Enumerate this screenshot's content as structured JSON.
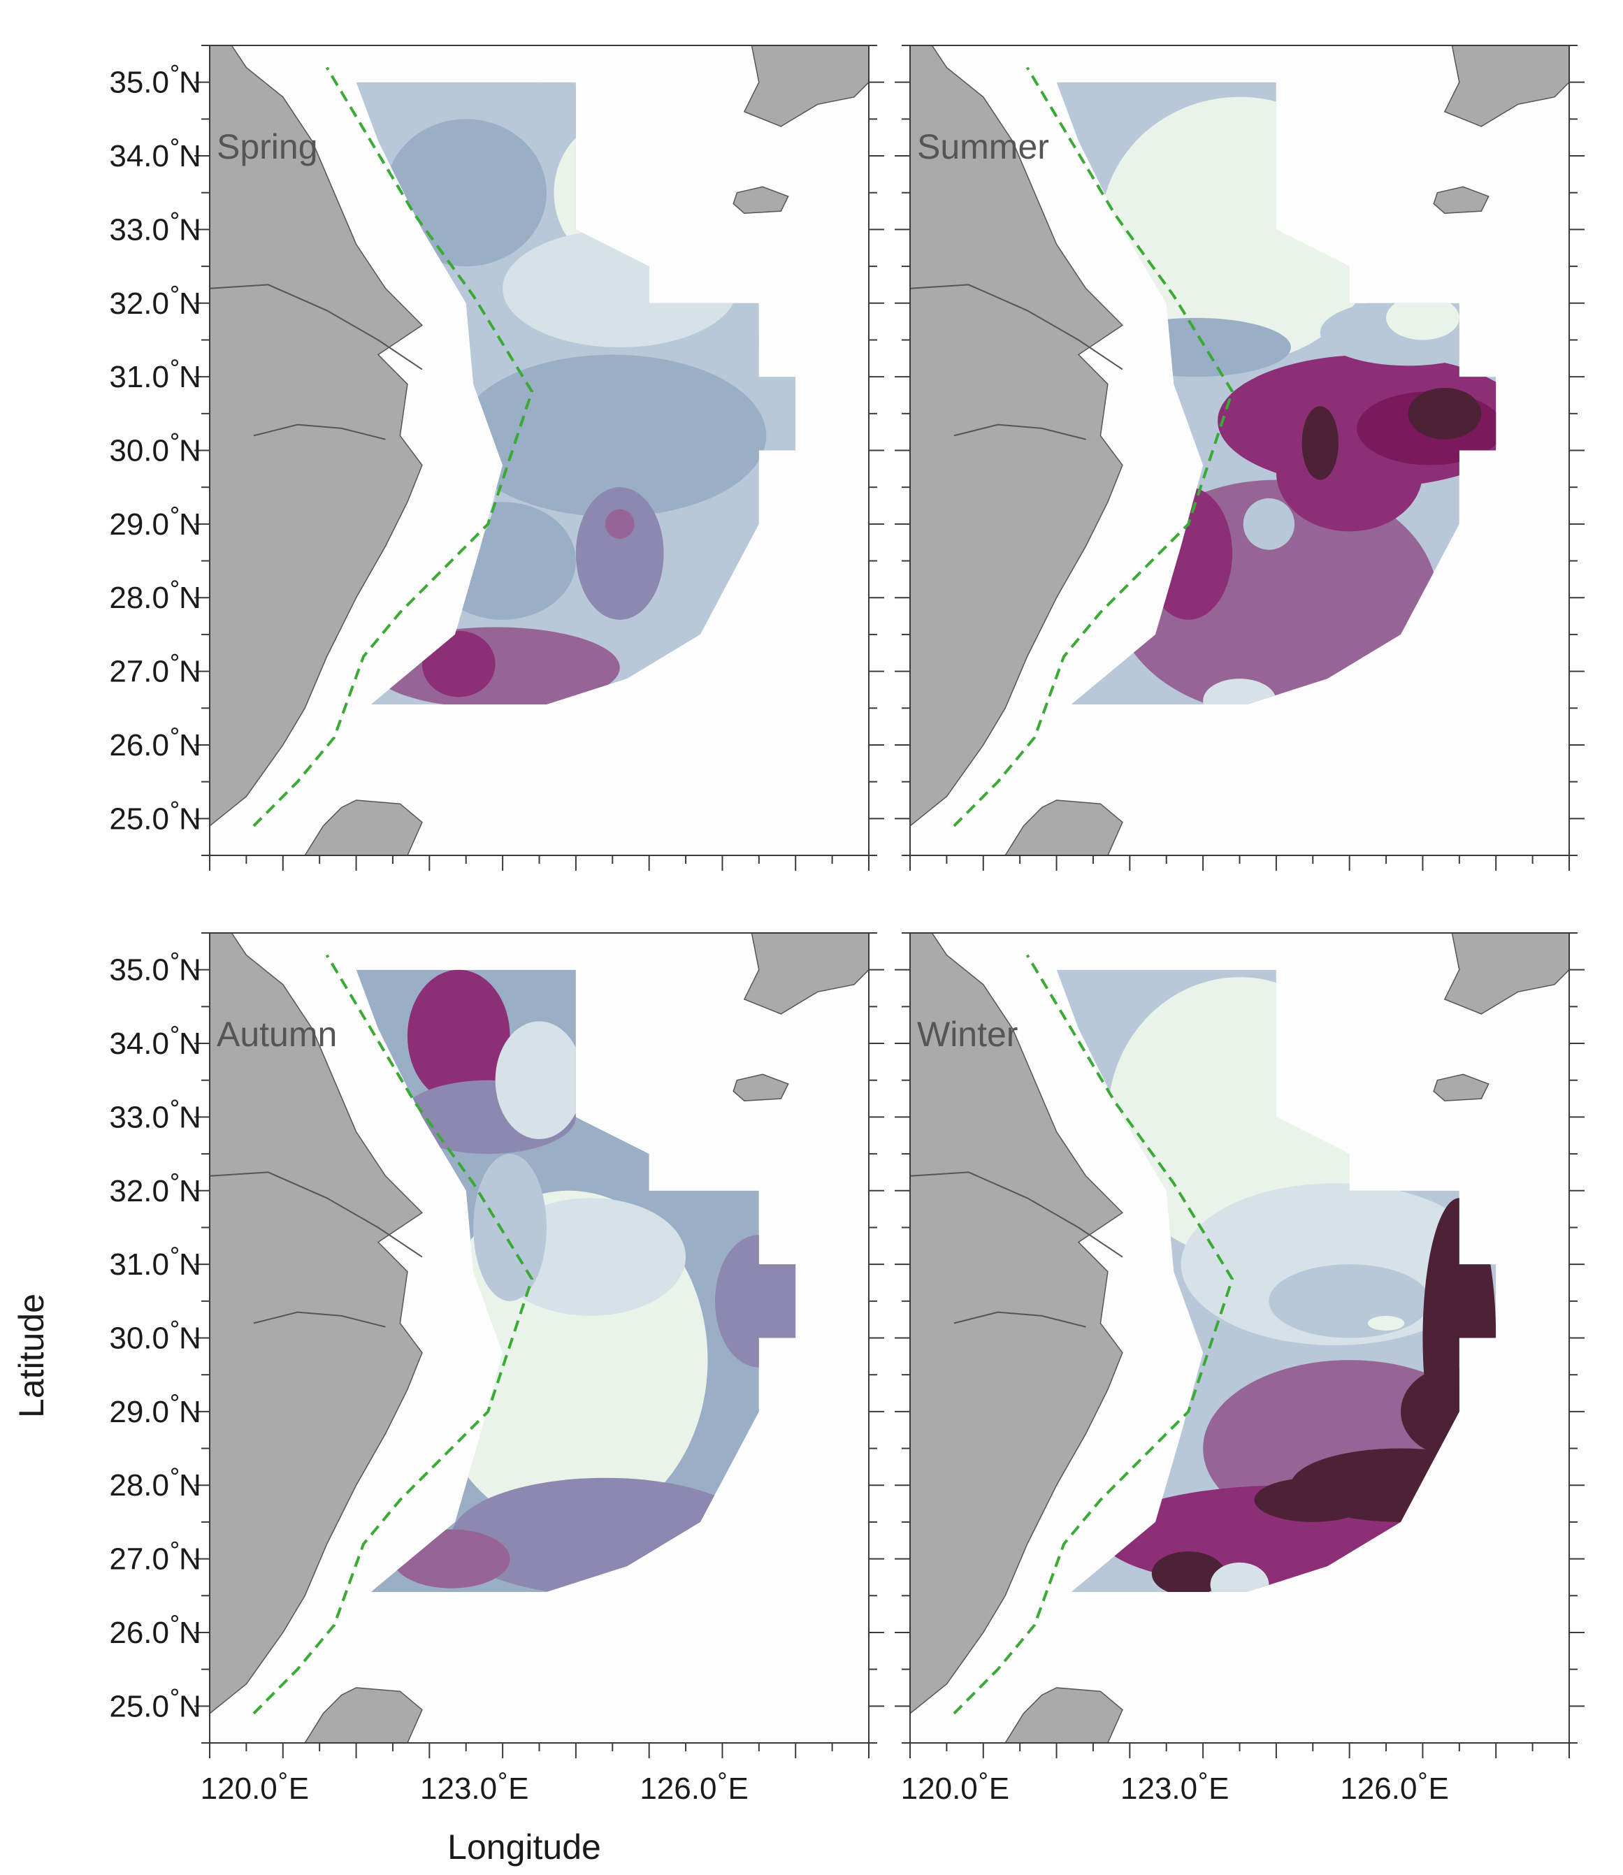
{
  "figure": {
    "x_axis_title": "Longitude",
    "y_axis_title": "Latitude",
    "lon_ticks": [
      {
        "value": 120,
        "label": "120.0",
        "suffix": "E"
      },
      {
        "value": 123,
        "label": "123.0",
        "suffix": "E"
      },
      {
        "value": 126,
        "label": "126.0",
        "suffix": "E"
      }
    ],
    "lat_ticks": [
      {
        "value": 35,
        "label": "35.0",
        "suffix": "N"
      },
      {
        "value": 34,
        "label": "34.0",
        "suffix": "N"
      },
      {
        "value": 33,
        "label": "33.0",
        "suffix": "N"
      },
      {
        "value": 32,
        "label": "32.0",
        "suffix": "N"
      },
      {
        "value": 31,
        "label": "31.0",
        "suffix": "N"
      },
      {
        "value": 30,
        "label": "30.0",
        "suffix": "N"
      },
      {
        "value": 29,
        "label": "29.0",
        "suffix": "N"
      },
      {
        "value": 28,
        "label": "28.0",
        "suffix": "N"
      },
      {
        "value": 27,
        "label": "27.0",
        "suffix": "N"
      },
      {
        "value": 26,
        "label": "26.0",
        "suffix": "N"
      },
      {
        "value": 25,
        "label": "25.0",
        "suffix": "N"
      }
    ],
    "extent": {
      "lon_min": 119,
      "lon_max": 128,
      "lat_min": 24.5,
      "lat_max": 35.5
    }
  },
  "panels": [
    {
      "season": "Spring",
      "id": "spring"
    },
    {
      "season": "Summer",
      "id": "summer"
    },
    {
      "season": "Autumn",
      "id": "autumn"
    },
    {
      "season": "Winter",
      "id": "winter"
    }
  ],
  "colors": {
    "land": "#aaaaaa",
    "land_edge": "#555555",
    "sea": "#fefdfd",
    "front_line": "#3aaa35",
    "scale": [
      "#eaf3ea",
      "#d6e1e8",
      "#b8c8d8",
      "#9aaec6",
      "#8c88b0",
      "#966596",
      "#8c2f77",
      "#7a1a5c",
      "#4e2236"
    ]
  }
}
